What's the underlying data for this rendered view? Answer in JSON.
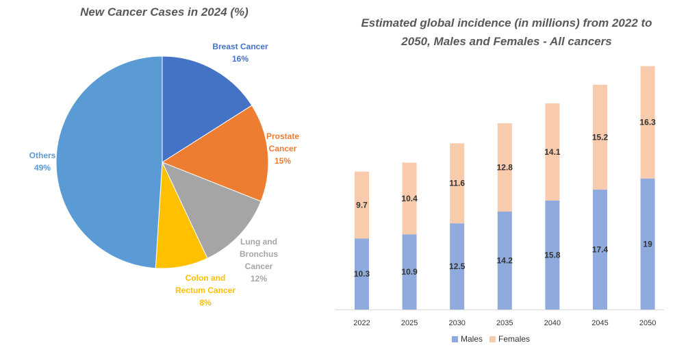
{
  "chart_data": [
    {
      "type": "pie",
      "title": "New Cancer Cases in 2024 (%)",
      "slices": [
        {
          "name_lines": [
            "Breast Cancer"
          ],
          "percent_label": "16%",
          "value": 16,
          "color": "#4472C4"
        },
        {
          "name_lines": [
            "Prostate",
            "Cancer"
          ],
          "percent_label": "15%",
          "value": 15,
          "color": "#ED7D31"
        },
        {
          "name_lines": [
            "Lung and",
            "Bronchus",
            "Cancer"
          ],
          "percent_label": "12%",
          "value": 12,
          "color": "#A5A5A5"
        },
        {
          "name_lines": [
            "Colon and",
            "Rectum Cancer"
          ],
          "percent_label": "8%",
          "value": 8,
          "color": "#FFC000"
        },
        {
          "name_lines": [
            "Others"
          ],
          "percent_label": "49%",
          "value": 49,
          "color": "#5B9BD5"
        }
      ]
    },
    {
      "type": "bar",
      "stacked": true,
      "title": "Estimated global incidence (in millions) from 2022 to 2050, Males and Females - All cancers",
      "categories": [
        "2022",
        "2025",
        "2030",
        "2035",
        "2040",
        "2045",
        "2050"
      ],
      "series": [
        {
          "name": "Males",
          "values": [
            10.3,
            10.9,
            12.5,
            14.2,
            15.8,
            17.4,
            19
          ],
          "color": "#8FAADC"
        },
        {
          "name": "Females",
          "values": [
            9.7,
            10.4,
            11.6,
            12.8,
            14.1,
            15.2,
            16.3
          ],
          "color": "#F8CBAD"
        }
      ],
      "legend": "bottom"
    }
  ]
}
